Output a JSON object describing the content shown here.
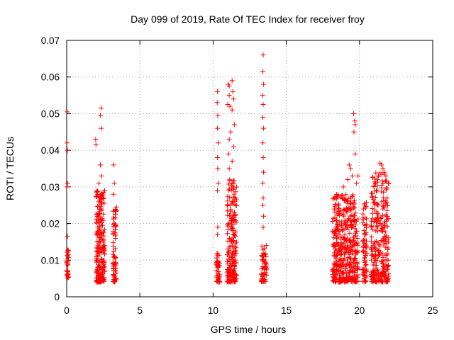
{
  "chart_data": {
    "type": "scatter",
    "title": "Day 099 of 2019, Rate Of TEC Index for receiver froy",
    "xlabel": "GPS time / hours",
    "ylabel": "ROTI / TECUs",
    "xlim": [
      0,
      25
    ],
    "ylim": [
      0,
      0.07
    ],
    "x_ticks": [
      0,
      5,
      10,
      15,
      20,
      25
    ],
    "x_tick_labels": [
      "0",
      "5",
      "10",
      "15",
      "20",
      "25"
    ],
    "y_ticks": [
      0,
      0.01,
      0.02,
      0.03,
      0.04,
      0.05,
      0.06,
      0.07
    ],
    "y_tick_labels": [
      "0",
      "0.01",
      "0.02",
      "0.03",
      "0.04",
      "0.05",
      "0.06",
      "0.07"
    ],
    "grid": true,
    "marker": "+",
    "series_color": "#ff0000",
    "clusters": [
      {
        "x_start": 0.0,
        "x_end": 0.12,
        "y_min": 0.005,
        "y_max": 0.013,
        "n": 26
      },
      {
        "x_start": 2.0,
        "x_end": 2.6,
        "y_min": 0.004,
        "y_max": 0.029,
        "n": 210
      },
      {
        "x_start": 3.15,
        "x_end": 3.4,
        "y_min": 0.004,
        "y_max": 0.025,
        "n": 70
      },
      {
        "x_start": 10.2,
        "x_end": 10.45,
        "y_min": 0.004,
        "y_max": 0.012,
        "n": 40
      },
      {
        "x_start": 10.95,
        "x_end": 11.6,
        "y_min": 0.004,
        "y_max": 0.032,
        "n": 200
      },
      {
        "x_start": 13.3,
        "x_end": 13.65,
        "y_min": 0.004,
        "y_max": 0.014,
        "n": 60
      },
      {
        "x_start": 18.15,
        "x_end": 19.9,
        "y_min": 0.004,
        "y_max": 0.028,
        "n": 420
      },
      {
        "x_start": 20.2,
        "x_end": 20.5,
        "y_min": 0.004,
        "y_max": 0.026,
        "n": 70
      },
      {
        "x_start": 20.8,
        "x_end": 22.0,
        "y_min": 0.004,
        "y_max": 0.034,
        "n": 280
      }
    ],
    "points": [
      [
        0.02,
        0.042
      ],
      [
        0.05,
        0.04
      ],
      [
        0.03,
        0.0505
      ],
      [
        0.02,
        0.03
      ],
      [
        0.06,
        0.031
      ],
      [
        0.05,
        0.0165
      ],
      [
        0.03,
        0.006
      ],
      [
        1.98,
        0.043
      ],
      [
        2.0,
        0.0415
      ],
      [
        2.35,
        0.0515
      ],
      [
        2.3,
        0.0495
      ],
      [
        2.35,
        0.046
      ],
      [
        2.3,
        0.036
      ],
      [
        2.38,
        0.033
      ],
      [
        2.2,
        0.031
      ],
      [
        3.2,
        0.036
      ],
      [
        3.25,
        0.031
      ],
      [
        3.2,
        0.028
      ],
      [
        10.3,
        0.056
      ],
      [
        10.28,
        0.053
      ],
      [
        10.32,
        0.0495
      ],
      [
        10.3,
        0.046
      ],
      [
        10.35,
        0.042
      ],
      [
        10.3,
        0.038
      ],
      [
        10.32,
        0.035
      ],
      [
        10.35,
        0.031
      ],
      [
        10.3,
        0.029
      ],
      [
        10.32,
        0.019
      ],
      [
        10.3,
        0.017
      ],
      [
        11.05,
        0.058
      ],
      [
        11.1,
        0.0575
      ],
      [
        11.1,
        0.055
      ],
      [
        11.15,
        0.052
      ],
      [
        11.0,
        0.0525
      ],
      [
        11.3,
        0.059
      ],
      [
        11.35,
        0.056
      ],
      [
        11.4,
        0.054
      ],
      [
        11.3,
        0.051
      ],
      [
        11.45,
        0.047
      ],
      [
        11.2,
        0.045
      ],
      [
        11.1,
        0.043
      ],
      [
        11.4,
        0.041
      ],
      [
        11.05,
        0.039
      ],
      [
        11.3,
        0.037
      ],
      [
        11.1,
        0.035
      ],
      [
        13.42,
        0.066
      ],
      [
        13.4,
        0.0615
      ],
      [
        13.45,
        0.058
      ],
      [
        13.38,
        0.055
      ],
      [
        13.42,
        0.0525
      ],
      [
        13.4,
        0.049
      ],
      [
        13.45,
        0.046
      ],
      [
        13.4,
        0.042
      ],
      [
        13.42,
        0.038
      ],
      [
        13.45,
        0.034
      ],
      [
        13.4,
        0.031
      ],
      [
        13.42,
        0.027
      ],
      [
        13.4,
        0.025
      ],
      [
        13.45,
        0.022
      ],
      [
        13.42,
        0.019
      ],
      [
        19.6,
        0.05
      ],
      [
        19.68,
        0.048
      ],
      [
        19.7,
        0.047
      ],
      [
        19.62,
        0.045
      ],
      [
        19.7,
        0.039
      ],
      [
        19.3,
        0.036
      ],
      [
        19.4,
        0.035
      ],
      [
        19.5,
        0.033
      ],
      [
        19.2,
        0.032
      ],
      [
        18.9,
        0.03
      ],
      [
        19.8,
        0.031
      ],
      [
        19.9,
        0.033
      ],
      [
        21.1,
        0.031
      ],
      [
        21.3,
        0.033
      ],
      [
        21.4,
        0.0365
      ],
      [
        21.5,
        0.036
      ],
      [
        21.6,
        0.035
      ],
      [
        21.7,
        0.0335
      ],
      [
        21.8,
        0.033
      ],
      [
        21.6,
        0.031
      ],
      [
        21.2,
        0.029
      ]
    ]
  }
}
